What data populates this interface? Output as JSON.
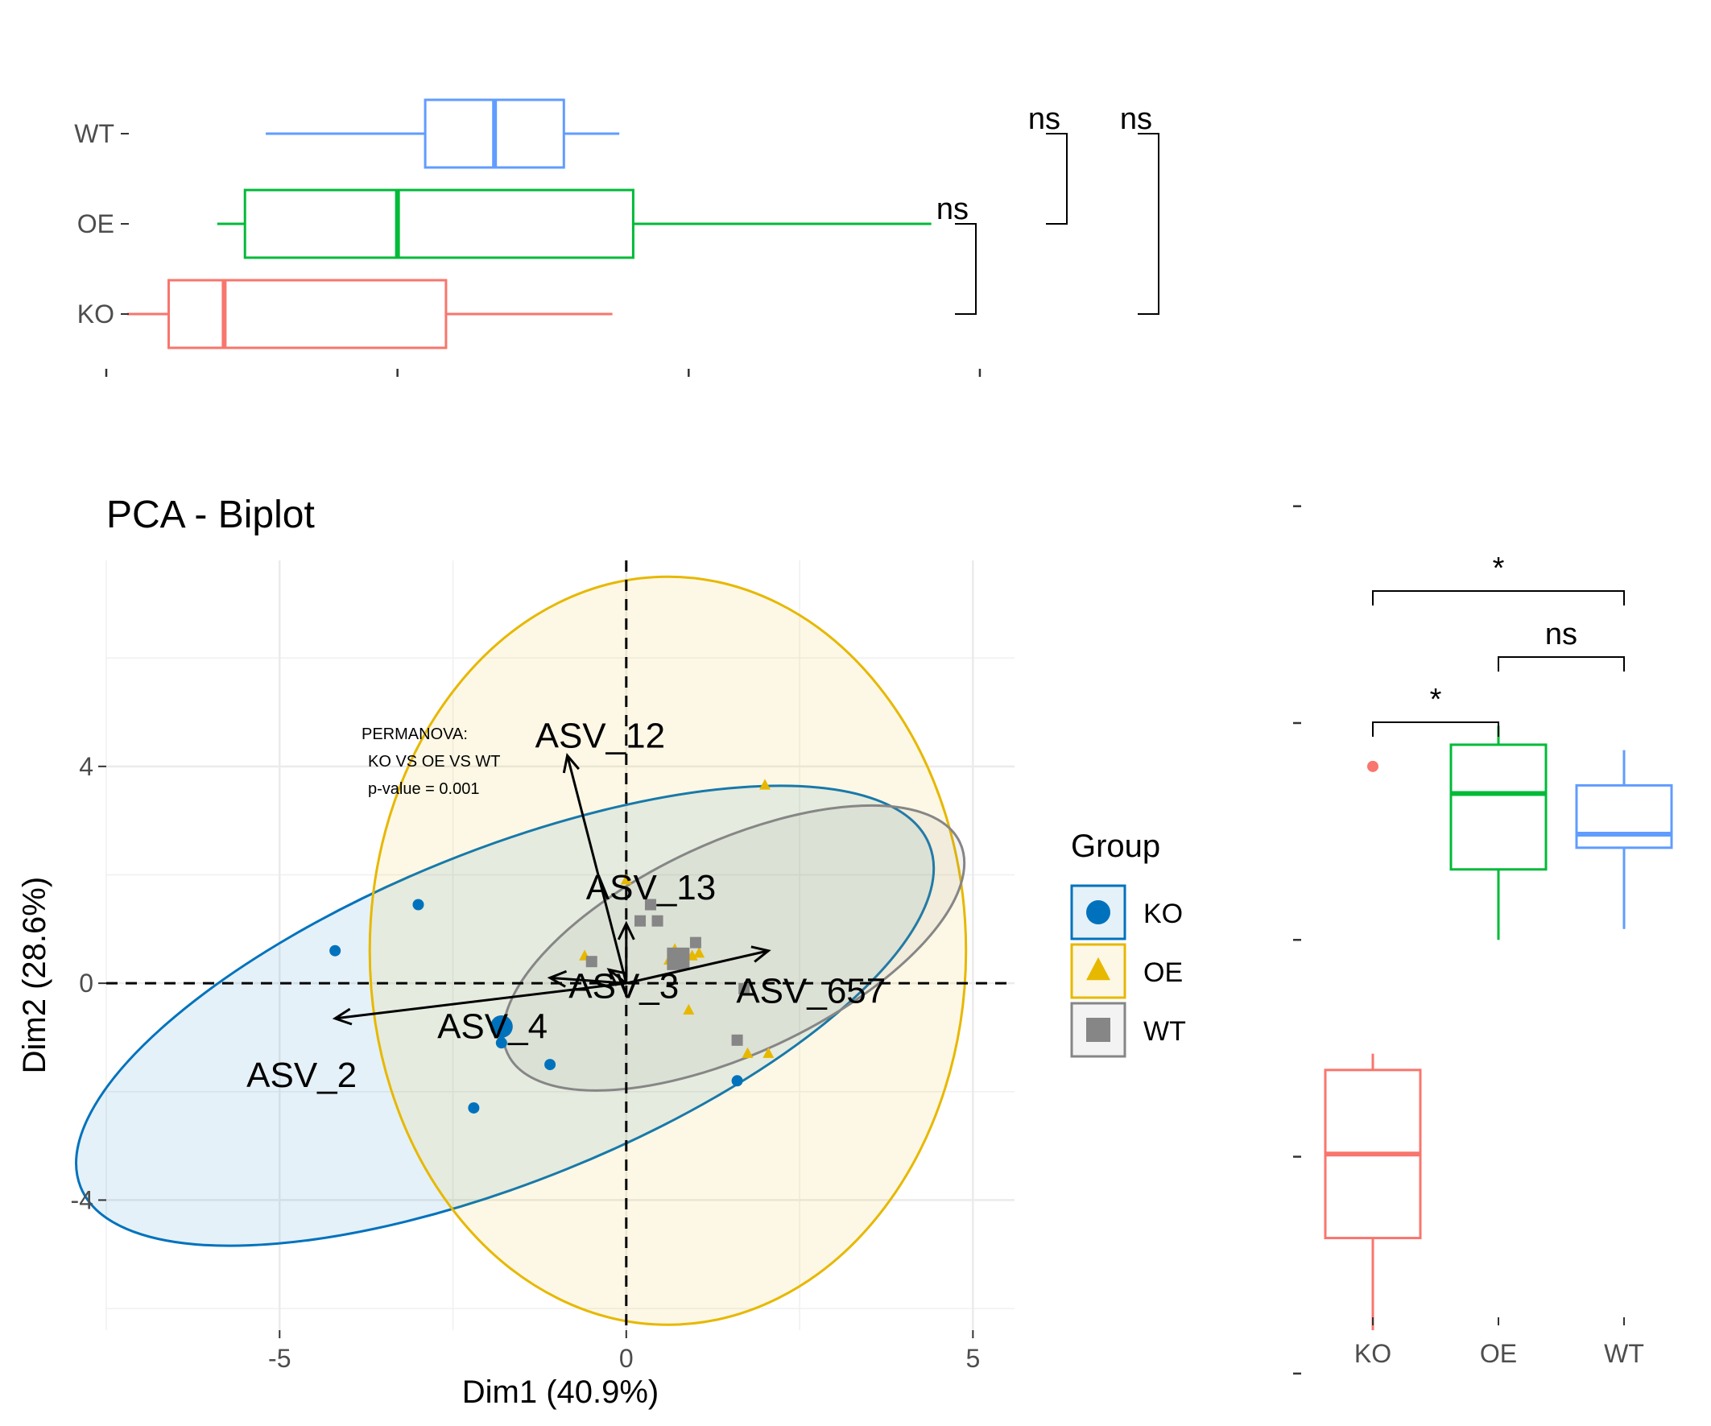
{
  "colors": {
    "KO": "#0072BD",
    "OE": "#E7B800",
    "WT": "#868686",
    "box_KO": "#F8766D",
    "box_OE": "#00BA38",
    "box_WT": "#619CFF"
  },
  "chart_data": [
    {
      "type": "scatter",
      "title": "PCA - Biplot",
      "xlabel": "Dim1 (40.9%)",
      "ylabel": "Dim2 (28.6%)",
      "xlim": [
        -7.5,
        5.6
      ],
      "ylim": [
        -6.4,
        7.8
      ],
      "xticks": [
        -5,
        0,
        5
      ],
      "yticks": [
        -4,
        0,
        4
      ],
      "grid": true,
      "legend": {
        "title": "Group",
        "position": "right",
        "entries": [
          "KO",
          "OE",
          "WT"
        ]
      },
      "annotation": [
        "PERMANOVA:",
        "KO VS OE VS WT",
        "p-value = 0.001"
      ],
      "series": [
        {
          "name": "KO",
          "shape": "circle",
          "points": [
            [
              -3.0,
              1.45
            ],
            [
              -4.2,
              0.6
            ],
            [
              -1.75,
              -0.8
            ],
            [
              -1.8,
              -1.1
            ],
            [
              -1.1,
              -1.5
            ],
            [
              -2.2,
              -2.3
            ],
            [
              1.6,
              -1.8
            ]
          ],
          "centroid": [
            -1.8,
            -0.8
          ],
          "ellipse": {
            "cx": -1.75,
            "cy": -0.6,
            "rx": 6.6,
            "ry": 3.05,
            "angle_deg": -22
          }
        },
        {
          "name": "OE",
          "shape": "triangle",
          "points": [
            [
              0.0,
              1.9
            ],
            [
              2.0,
              3.65
            ],
            [
              -0.6,
              0.5
            ],
            [
              0.95,
              0.5
            ],
            [
              1.05,
              0.55
            ],
            [
              0.9,
              -0.5
            ],
            [
              1.75,
              -1.3
            ],
            [
              2.05,
              -1.3
            ]
          ],
          "centroid": [
            0.7,
            0.5
          ],
          "ellipse": {
            "cx": 0.6,
            "cy": 0.6,
            "rx": 4.3,
            "ry": 6.9,
            "angle_deg": 0
          }
        },
        {
          "name": "WT",
          "shape": "square",
          "points": [
            [
              0.35,
              1.45
            ],
            [
              0.45,
              1.15
            ],
            [
              1.0,
              0.75
            ],
            [
              0.2,
              1.15
            ],
            [
              -0.5,
              0.4
            ],
            [
              1.6,
              -1.05
            ],
            [
              1.7,
              -0.1
            ]
          ],
          "centroid": [
            0.75,
            0.45
          ],
          "ellipse": {
            "cx": 1.55,
            "cy": 0.65,
            "rx": 3.6,
            "ry": 1.95,
            "angle_deg": -25
          }
        }
      ],
      "arrows": [
        {
          "label": "ASV_12",
          "x": -0.85,
          "y": 4.2
        },
        {
          "label": "ASV_13",
          "x": 0.0,
          "y": 1.1
        },
        {
          "label": "ASV_3",
          "x": -0.25,
          "y": 0.25
        },
        {
          "label": "ASV_657",
          "x": 2.05,
          "y": 0.6
        },
        {
          "label": "ASV_2",
          "x": -4.2,
          "y": -0.65
        },
        {
          "label": "ASV_4",
          "x": -1.1,
          "y": 0.1
        }
      ]
    },
    {
      "type": "box",
      "orientation": "horizontal",
      "categories": [
        "WT",
        "OE",
        "KO"
      ],
      "xlim": [
        -7.5,
        5.6
      ],
      "xticks": [
        -7.5,
        -3.3,
        0.9,
        5.1
      ],
      "tick_labels_shown": false,
      "boxes": [
        {
          "name": "WT",
          "min": -5.2,
          "q1": -2.9,
          "median": -1.9,
          "q3": -0.9,
          "max": -0.1
        },
        {
          "name": "OE",
          "min": -5.9,
          "q1": -5.5,
          "median": -3.3,
          "q3": 0.1,
          "max": 4.4
        },
        {
          "name": "KO",
          "min": -7.2,
          "q1": -6.6,
          "median": -5.8,
          "q3": -2.6,
          "max": -0.2
        }
      ],
      "comparisons": [
        {
          "groups": [
            "OE",
            "KO"
          ],
          "label": "ns"
        },
        {
          "groups": [
            "WT",
            "OE"
          ],
          "label": "ns"
        },
        {
          "groups": [
            "WT",
            "KO"
          ],
          "label": "ns"
        }
      ]
    },
    {
      "type": "box",
      "orientation": "vertical",
      "categories": [
        "KO",
        "OE",
        "WT"
      ],
      "ylim": [
        -6.4,
        7.8
      ],
      "yticks": [
        -7.2,
        -3.2,
        0.8,
        4.8,
        8.8
      ],
      "tick_labels_shown": false,
      "boxes": [
        {
          "name": "KO",
          "min": -6.4,
          "q1": -4.7,
          "median": -3.15,
          "q3": -1.6,
          "max": -1.3,
          "outliers": [
            4.0
          ]
        },
        {
          "name": "OE",
          "min": 0.8,
          "q1": 2.1,
          "median": 3.5,
          "q3": 4.4,
          "max": 4.75
        },
        {
          "name": "WT",
          "min": 1.0,
          "q1": 2.5,
          "median": 2.75,
          "q3": 3.65,
          "max": 4.3
        }
      ],
      "comparisons": [
        {
          "groups": [
            "KO",
            "OE"
          ],
          "label": "*"
        },
        {
          "groups": [
            "OE",
            "WT"
          ],
          "label": "ns"
        },
        {
          "groups": [
            "KO",
            "WT"
          ],
          "label": "*"
        }
      ]
    }
  ]
}
